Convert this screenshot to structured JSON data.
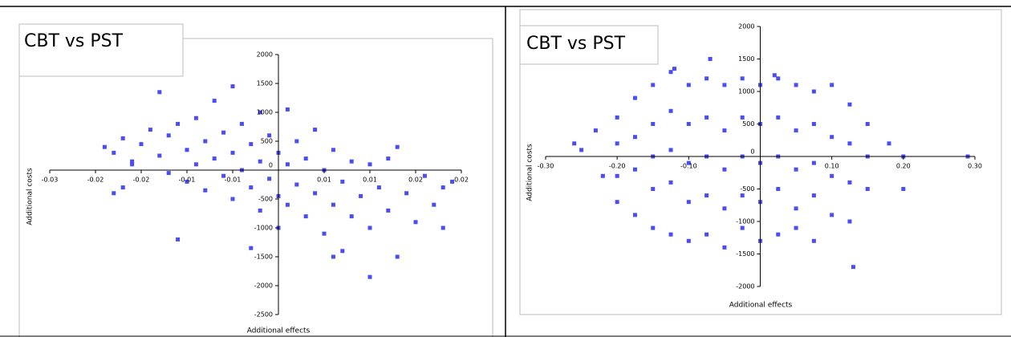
{
  "chart_data": [
    {
      "type": "scatter",
      "title": "CBT vs PST",
      "x_label": "Additional effects",
      "y_label": "Additional costs",
      "color": "#4a4cf4",
      "xlim": [
        -0.025,
        0.02
      ],
      "ylim": [
        -2500,
        2000
      ],
      "xticks": [
        {
          "value": -0.025,
          "label": "-0.03"
        },
        {
          "value": -0.02,
          "label": "-0.02"
        },
        {
          "value": -0.015,
          "label": "-0.02"
        },
        {
          "value": -0.01,
          "label": "-0.01"
        },
        {
          "value": -0.005,
          "label": "-0.01"
        },
        {
          "value": 0.005,
          "label": "0.01"
        },
        {
          "value": 0.01,
          "label": "0.01"
        },
        {
          "value": 0.015,
          "label": "0.02"
        },
        {
          "value": 0.02,
          "label": "0.02"
        }
      ],
      "yticks": [
        2000,
        1500,
        1000,
        500,
        0,
        -500,
        -1000,
        -1500,
        -2000,
        -2500
      ],
      "x": [
        -0.019,
        -0.018,
        -0.017,
        -0.016,
        -0.015,
        -0.014,
        -0.013,
        -0.013,
        -0.012,
        -0.012,
        -0.011,
        -0.01,
        -0.01,
        -0.009,
        -0.009,
        -0.008,
        -0.008,
        -0.007,
        -0.007,
        -0.006,
        -0.006,
        -0.005,
        -0.005,
        -0.005,
        -0.004,
        -0.004,
        -0.003,
        -0.003,
        -0.002,
        -0.002,
        -0.002,
        -0.001,
        -0.001,
        0,
        0,
        0,
        0.001,
        0.001,
        0.001,
        0.002,
        0.002,
        0.003,
        0.003,
        0.004,
        0.004,
        0.005,
        0.005,
        0.006,
        0.006,
        0.007,
        0.007,
        0.008,
        0.008,
        0.009,
        0.01,
        0.01,
        0.011,
        0.012,
        0.012,
        0.013,
        0.014,
        0.015,
        0.016,
        0.017,
        0.018,
        0.018,
        0.019,
        0.01,
        -0.017,
        -0.016,
        -0.018,
        -0.003,
        0.006,
        -0.011,
        0.013
      ],
      "y": [
        400,
        300,
        550,
        150,
        450,
        700,
        1350,
        250,
        600,
        -50,
        800,
        350,
        -200,
        900,
        100,
        500,
        -350,
        1200,
        200,
        650,
        -100,
        1450,
        300,
        -500,
        800,
        0,
        450,
        -300,
        1000,
        150,
        -700,
        600,
        -150,
        300,
        -450,
        -1000,
        1050,
        100,
        -600,
        500,
        -250,
        -800,
        200,
        700,
        -400,
        0,
        -1100,
        350,
        -600,
        -200,
        -1400,
        150,
        -800,
        -450,
        100,
        -1000,
        -300,
        -700,
        200,
        -1500,
        -400,
        -900,
        -100,
        -600,
        -300,
        -1000,
        -200,
        -1850,
        -300,
        100,
        -400,
        -1350,
        -1500,
        -1200,
        400
      ]
    },
    {
      "type": "scatter",
      "title": "CBT vs PST",
      "x_label": "Additional effects",
      "y_label": "Additional costs",
      "color": "#4a4cf4",
      "xlim": [
        -0.3,
        0.3
      ],
      "ylim": [
        -2000,
        2000
      ],
      "xticks": [
        {
          "value": -0.3,
          "label": "-0.30"
        },
        {
          "value": -0.2,
          "label": "-0.20"
        },
        {
          "value": -0.1,
          "label": "-0.10"
        },
        {
          "value": 0.1,
          "label": "0.10"
        },
        {
          "value": 0.2,
          "label": "0.20"
        },
        {
          "value": 0.3,
          "label": "0.30"
        }
      ],
      "yticks": [
        2000,
        1500,
        1000,
        500,
        0,
        -500,
        -1000,
        -1500,
        -2000
      ],
      "x": [
        -0.2,
        -0.2,
        -0.2,
        -0.2,
        -0.175,
        -0.175,
        -0.175,
        -0.175,
        -0.15,
        -0.15,
        -0.15,
        -0.15,
        -0.15,
        -0.125,
        -0.125,
        -0.125,
        -0.125,
        -0.125,
        -0.1,
        -0.1,
        -0.1,
        -0.1,
        -0.1,
        -0.075,
        -0.075,
        -0.075,
        -0.075,
        -0.075,
        -0.05,
        -0.05,
        -0.05,
        -0.05,
        -0.05,
        -0.025,
        -0.025,
        -0.025,
        -0.025,
        -0.025,
        0,
        0,
        0,
        0,
        0,
        0.025,
        0.025,
        0.025,
        0.025,
        0.025,
        0.05,
        0.05,
        0.05,
        0.05,
        0.05,
        0.075,
        0.075,
        0.075,
        0.075,
        0.075,
        0.1,
        0.1,
        0.1,
        0.1,
        0.125,
        0.125,
        0.125,
        0.125,
        0.15,
        0.15,
        0.15,
        -0.25,
        -0.26,
        -0.23,
        -0.22,
        0.18,
        0.2,
        0.29,
        0.2,
        0.13,
        -0.07,
        0.02,
        -0.12
      ],
      "y": [
        600,
        200,
        -300,
        -700,
        900,
        300,
        -200,
        -900,
        1100,
        500,
        0,
        -500,
        -1100,
        1300,
        700,
        100,
        -400,
        -1200,
        1100,
        500,
        -100,
        -700,
        -1300,
        1200,
        600,
        0,
        -600,
        -1200,
        1100,
        400,
        -200,
        -800,
        -1400,
        1200,
        600,
        0,
        -600,
        -1100,
        1100,
        500,
        -100,
        -700,
        -1300,
        1200,
        600,
        0,
        -500,
        -1200,
        1100,
        400,
        -200,
        -800,
        -1100,
        1000,
        500,
        -100,
        -600,
        -1300,
        1100,
        300,
        -300,
        -900,
        800,
        200,
        -400,
        -1000,
        500,
        0,
        -500,
        100,
        200,
        400,
        -300,
        200,
        0,
        0,
        -500,
        -1700,
        1500,
        1250,
        1350
      ]
    }
  ]
}
